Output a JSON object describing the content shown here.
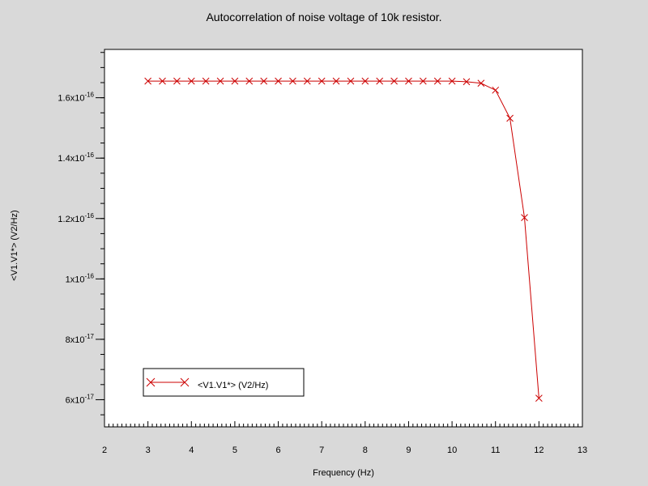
{
  "chart_data": {
    "type": "line",
    "title": "Autocorrelation of noise voltage of 10k resistor.",
    "xlabel": "Frequency (Hz)",
    "ylabel": "<V1.V1*> (V2/Hz)",
    "xlim": [
      2,
      13
    ],
    "ylim": [
      5.1e-17,
      1.76e-16
    ],
    "x_ticks": [
      2,
      3,
      4,
      5,
      6,
      7,
      8,
      9,
      10,
      11,
      12,
      13
    ],
    "y_ticks": [
      {
        "value": 6e-17,
        "mantissa": "6x10",
        "exp": "-17"
      },
      {
        "value": 8e-17,
        "mantissa": "8x10",
        "exp": "-17"
      },
      {
        "value": 1e-16,
        "mantissa": "1x10",
        "exp": "-16"
      },
      {
        "value": 1.2e-16,
        "mantissa": "1.2x10",
        "exp": "-16"
      },
      {
        "value": 1.4e-16,
        "mantissa": "1.4x10",
        "exp": "-16"
      },
      {
        "value": 1.6e-16,
        "mantissa": "1.6x10",
        "exp": "-16"
      }
    ],
    "grid": false,
    "legend_position": "bottom-left",
    "series": [
      {
        "name": "<V1.V1*> (V2/Hz)",
        "color": "#cc0000",
        "marker": "x",
        "x": [
          3.0,
          3.333,
          3.667,
          4.0,
          4.333,
          4.667,
          5.0,
          5.333,
          5.667,
          6.0,
          6.333,
          6.667,
          7.0,
          7.333,
          7.667,
          8.0,
          8.333,
          8.667,
          9.0,
          9.333,
          9.667,
          10.0,
          10.333,
          10.667,
          11.0,
          11.333,
          11.667,
          12.0
        ],
        "values": [
          1.655e-16,
          1.655e-16,
          1.655e-16,
          1.655e-16,
          1.655e-16,
          1.655e-16,
          1.655e-16,
          1.655e-16,
          1.655e-16,
          1.655e-16,
          1.655e-16,
          1.655e-16,
          1.655e-16,
          1.655e-16,
          1.655e-16,
          1.655e-16,
          1.655e-16,
          1.655e-16,
          1.655e-16,
          1.655e-16,
          1.655e-16,
          1.655e-16,
          1.653e-16,
          1.648e-16,
          1.625e-16,
          1.532e-16,
          1.203e-16,
          6.05e-17
        ]
      }
    ]
  }
}
